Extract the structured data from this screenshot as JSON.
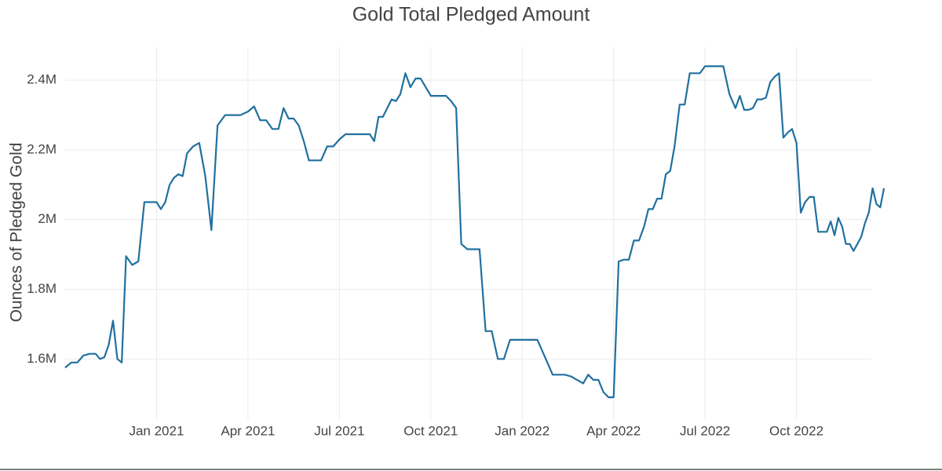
{
  "chart_data": {
    "type": "line",
    "title": "Gold Total Pledged Amount",
    "y_label": "Ounces of Pledged Gold",
    "xlim": [
      "2020-10",
      "2023-01"
    ],
    "xticks": [
      {
        "value": "2021-01",
        "label": "Jan 2021"
      },
      {
        "value": "2021-04",
        "label": "Apr 2021"
      },
      {
        "value": "2021-07",
        "label": "Jul 2021"
      },
      {
        "value": "2021-10",
        "label": "Oct 2021"
      },
      {
        "value": "2022-01",
        "label": "Jan 2022"
      },
      {
        "value": "2022-04",
        "label": "Apr 2022"
      },
      {
        "value": "2022-07",
        "label": "Jul 2022"
      },
      {
        "value": "2022-10",
        "label": "Oct 2022"
      }
    ],
    "ylim": [
      1425000,
      2495000
    ],
    "yticks": [
      {
        "value": 1600000,
        "label": "1.6M"
      },
      {
        "value": 1800000,
        "label": "1.8M"
      },
      {
        "value": 2000000,
        "label": "2M"
      },
      {
        "value": 2200000,
        "label": "2.2M"
      },
      {
        "value": 2400000,
        "label": "2.4M"
      }
    ],
    "grid": true,
    "x": [
      "2020-10",
      "2020-10",
      "2020-10",
      "2020-10",
      "2020-10",
      "2020-11",
      "2020-11",
      "2020-11",
      "2020-11",
      "2020-11",
      "2020-11",
      "2020-11",
      "2020-12",
      "2020-12",
      "2020-12",
      "2020-12",
      "2020-12",
      "2021-01",
      "2021-01",
      "2021-01",
      "2021-01",
      "2021-01",
      "2021-01",
      "2021-01",
      "2021-02",
      "2021-02",
      "2021-02",
      "2021-02",
      "2021-02",
      "2021-03",
      "2021-03",
      "2021-03",
      "2021-03",
      "2021-04",
      "2021-04",
      "2021-04",
      "2021-04",
      "2021-04",
      "2021-05",
      "2021-05",
      "2021-05",
      "2021-05",
      "2021-05",
      "2021-05",
      "2021-06",
      "2021-06",
      "2021-06",
      "2021-06",
      "2021-06",
      "2021-07",
      "2021-07",
      "2021-07",
      "2021-07",
      "2021-07",
      "2021-08",
      "2021-08",
      "2021-08",
      "2021-08",
      "2021-08",
      "2021-08",
      "2021-08",
      "2021-09",
      "2021-09",
      "2021-09",
      "2021-09",
      "2021-09",
      "2021-09",
      "2021-10",
      "2021-10",
      "2021-10",
      "2021-10",
      "2021-10",
      "2021-10",
      "2021-11",
      "2021-11",
      "2021-11",
      "2021-11",
      "2021-11",
      "2021-12",
      "2021-12",
      "2021-12",
      "2021-12",
      "2021-12",
      "2022-01",
      "2022-01",
      "2022-01",
      "2022-01",
      "2022-02",
      "2022-02",
      "2022-02",
      "2022-02",
      "2022-02",
      "2022-03",
      "2022-03",
      "2022-03",
      "2022-03",
      "2022-03",
      "2022-03",
      "2022-04",
      "2022-04",
      "2022-04",
      "2022-04",
      "2022-04",
      "2022-04",
      "2022-05",
      "2022-05",
      "2022-05",
      "2022-05",
      "2022-05",
      "2022-05",
      "2022-05",
      "2022-06",
      "2022-06",
      "2022-06",
      "2022-06",
      "2022-06",
      "2022-06",
      "2022-07",
      "2022-07",
      "2022-07",
      "2022-07",
      "2022-07",
      "2022-08",
      "2022-08",
      "2022-08",
      "2022-08",
      "2022-08",
      "2022-08",
      "2022-08",
      "2022-09",
      "2022-09",
      "2022-09",
      "2022-09",
      "2022-09",
      "2022-09",
      "2022-09",
      "2022-10",
      "2022-10",
      "2022-10",
      "2022-10",
      "2022-10",
      "2022-10",
      "2022-10",
      "2022-11",
      "2022-11",
      "2022-11",
      "2022-11",
      "2022-11",
      "2022-11",
      "2022-11",
      "2022-11",
      "2022-12",
      "2022-12",
      "2022-12",
      "2022-12",
      "2022-12",
      "2022-12",
      "2022-12",
      "2022-12"
    ],
    "series": [
      {
        "name": "Gold",
        "color": "#21709f",
        "values": [
          1575000,
          1590000,
          1590000,
          1610000,
          1615000,
          1615000,
          1600000,
          1605000,
          1640000,
          1710000,
          1600000,
          1590000,
          1895000,
          1870000,
          1880000,
          2050000,
          2050000,
          2050000,
          2030000,
          2050000,
          2100000,
          2120000,
          2130000,
          2125000,
          2190000,
          2210000,
          2220000,
          2125000,
          1970000,
          2270000,
          2300000,
          2300000,
          2300000,
          2310000,
          2325000,
          2285000,
          2285000,
          2260000,
          2260000,
          2320000,
          2290000,
          2290000,
          2270000,
          2225000,
          2170000,
          2170000,
          2170000,
          2210000,
          2210000,
          2230000,
          2245000,
          2245000,
          2245000,
          2245000,
          2245000,
          2225000,
          2295000,
          2295000,
          2320000,
          2345000,
          2340000,
          2360000,
          2420000,
          2380000,
          2405000,
          2405000,
          2380000,
          2355000,
          2355000,
          2355000,
          2355000,
          2340000,
          2320000,
          1930000,
          1915000,
          1915000,
          1915000,
          1680000,
          1680000,
          1600000,
          1600000,
          1655000,
          1655000,
          1655000,
          1655000,
          1655000,
          1605000,
          1555000,
          1555000,
          1555000,
          1550000,
          1540000,
          1530000,
          1555000,
          1540000,
          1540000,
          1505000,
          1490000,
          1490000,
          1880000,
          1885000,
          1885000,
          1940000,
          1940000,
          1980000,
          2030000,
          2030000,
          2060000,
          2060000,
          2130000,
          2140000,
          2210000,
          2330000,
          2330000,
          2420000,
          2420000,
          2420000,
          2440000,
          2440000,
          2440000,
          2440000,
          2360000,
          2320000,
          2355000,
          2315000,
          2315000,
          2320000,
          2345000,
          2345000,
          2350000,
          2395000,
          2410000,
          2420000,
          2235000,
          2250000,
          2260000,
          2220000,
          2020000,
          2050000,
          2065000,
          2065000,
          1965000,
          1965000,
          1965000,
          1995000,
          1955000,
          2005000,
          1980000,
          1930000,
          1930000,
          1910000,
          1930000,
          1950000,
          1990000,
          2020000,
          2090000,
          2045000,
          2035000,
          2090000
        ]
      }
    ]
  }
}
